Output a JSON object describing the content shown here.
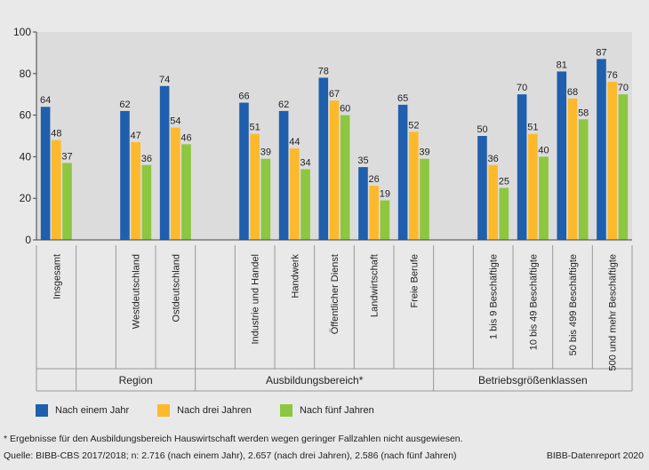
{
  "chart_data": {
    "type": "bar",
    "ylim": [
      0,
      100
    ],
    "yticks": [
      0,
      20,
      40,
      60,
      80,
      100
    ],
    "categories": [
      "Insgesamt",
      "Westdeutschland",
      "Ostdeutschland",
      "Industrie und Handel",
      "Handwerk",
      "Öffentlicher Dienst",
      "Landwirtschaft",
      "Freie Berufe",
      "1 bis 9 Beschäftigte",
      "10 bis 49 Beschäftigte",
      "50 bis 499 Beschäftigte",
      "500 und mehr Beschäftigte"
    ],
    "groups": [
      {
        "label": "",
        "categories": [
          "Insgesamt"
        ]
      },
      {
        "label": "Region",
        "categories": [
          "Westdeutschland",
          "Ostdeutschland"
        ]
      },
      {
        "label": "Ausbildungsbereich*",
        "categories": [
          "Industrie und Handel",
          "Handwerk",
          "Öffentlicher Dienst",
          "Landwirtschaft",
          "Freie Berufe"
        ]
      },
      {
        "label": "Betriebsgrößenklassen",
        "categories": [
          "1 bis 9 Beschäftigte",
          "10 bis 49 Beschäftigte",
          "50 bis 499 Beschäftigte",
          "500 und mehr Beschäftigte"
        ]
      }
    ],
    "series": [
      {
        "name": "Nach einem Jahr",
        "color": "#1f5fad",
        "values": [
          64,
          62,
          74,
          66,
          62,
          78,
          35,
          65,
          50,
          70,
          81,
          87
        ]
      },
      {
        "name": "Nach drei Jahren",
        "color": "#fdb92c",
        "values": [
          48,
          47,
          54,
          51,
          44,
          67,
          26,
          52,
          36,
          51,
          68,
          76
        ]
      },
      {
        "name": "Nach fünf Jahren",
        "color": "#8dc63f",
        "values": [
          37,
          36,
          46,
          39,
          34,
          60,
          19,
          39,
          25,
          40,
          58,
          70
        ]
      }
    ]
  },
  "footnote": "* Ergebnisse für den Ausbildungsbereich Hauswirtschaft werden wegen geringer Fallzahlen nicht ausgewiesen.",
  "source": "Quelle:  BIBB-CBS 2017/2018; n: 2.716 (nach einem Jahr), 2.657 (nach drei Jahren), 2.586 (nach fünf Jahren)",
  "credit": "BIBB-Datenreport 2020"
}
